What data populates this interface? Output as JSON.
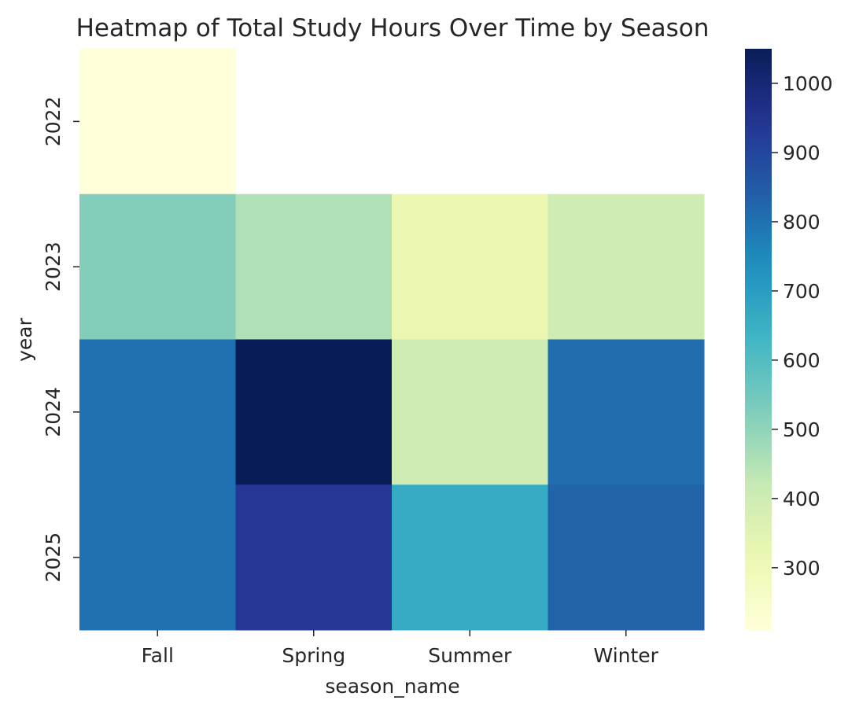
{
  "chart_data": {
    "type": "heatmap",
    "title": "Heatmap of Total Study Hours Over Time by Season",
    "xlabel": "season_name",
    "ylabel": "year",
    "x_categories": [
      "Fall",
      "Spring",
      "Summer",
      "Winter"
    ],
    "y_categories": [
      "2022",
      "2023",
      "2024",
      "2025"
    ],
    "values": [
      [
        210,
        null,
        null,
        null
      ],
      [
        520,
        455,
        320,
        400
      ],
      [
        800,
        1050,
        400,
        810
      ],
      [
        800,
        940,
        660,
        830
      ]
    ],
    "colorbar": {
      "vmin": 210,
      "vmax": 1050,
      "ticks": [
        300,
        400,
        500,
        600,
        700,
        800,
        900,
        1000
      ],
      "colormap": "YlGnBu"
    }
  }
}
